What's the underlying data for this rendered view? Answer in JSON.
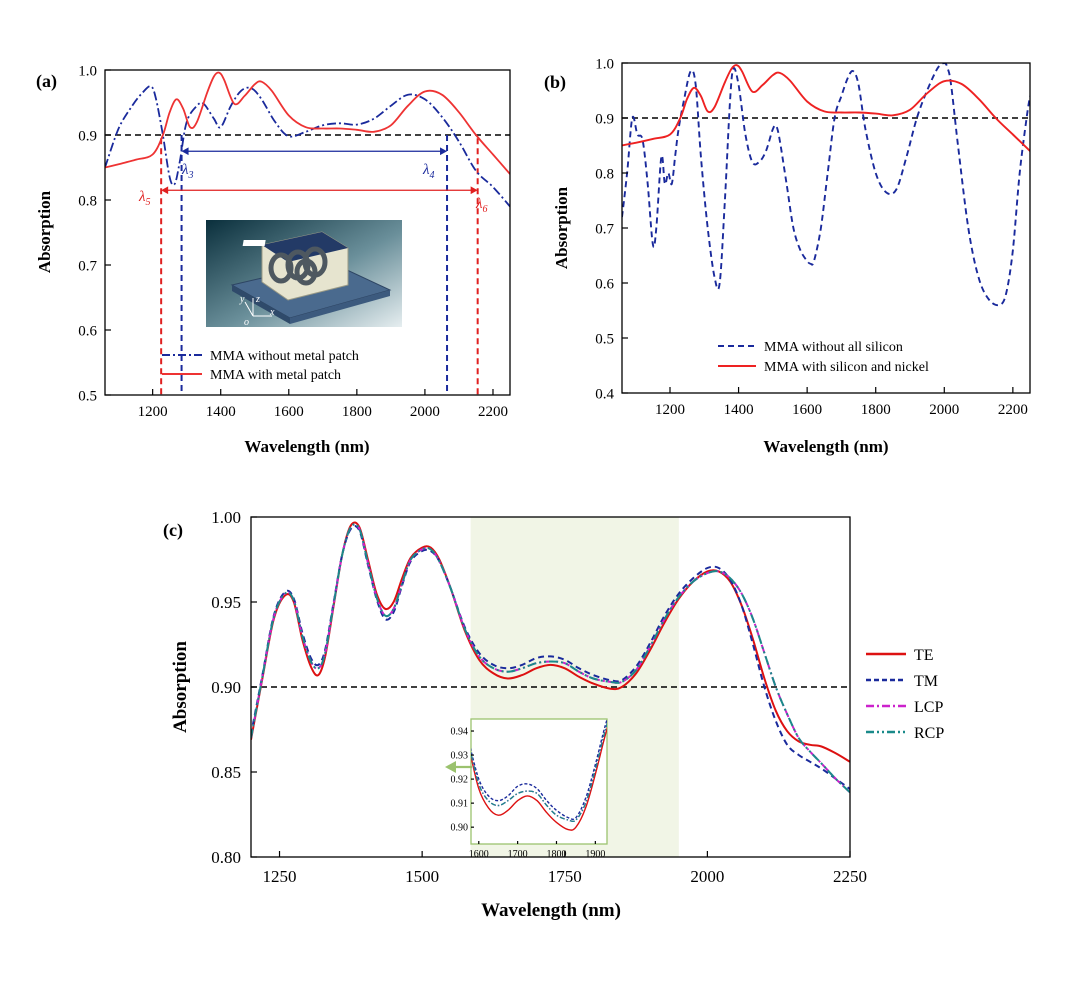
{
  "chart_data": [
    {
      "panel": "(a)",
      "type": "line",
      "xlabel": "Wavelength (nm)",
      "ylabel": "Absorption",
      "xlim": [
        1060,
        2250
      ],
      "ylim": [
        0.5,
        1.0
      ],
      "xticks": [
        1200,
        1400,
        1600,
        1800,
        2000,
        2200
      ],
      "yticks": [
        0.5,
        0.6,
        0.7,
        0.8,
        0.9,
        1.0
      ],
      "reference_line": 0.9,
      "series": [
        {
          "name": "MMA without metal patch",
          "style": "dash-dot",
          "color": "#1a2a9c",
          "x": [
            1060,
            1100,
            1140,
            1170,
            1195,
            1210,
            1230,
            1250,
            1265,
            1280,
            1300,
            1330,
            1350,
            1380,
            1400,
            1430,
            1460,
            1490,
            1520,
            1560,
            1600,
            1650,
            1700,
            1750,
            1800,
            1850,
            1900,
            1950,
            2000,
            2050,
            2100,
            2150,
            2200,
            2250
          ],
          "y": [
            0.85,
            0.91,
            0.945,
            0.965,
            0.975,
            0.955,
            0.9,
            0.835,
            0.825,
            0.86,
            0.92,
            0.945,
            0.948,
            0.925,
            0.912,
            0.945,
            0.968,
            0.972,
            0.955,
            0.92,
            0.898,
            0.905,
            0.915,
            0.918,
            0.916,
            0.925,
            0.945,
            0.962,
            0.955,
            0.928,
            0.89,
            0.845,
            0.82,
            0.79
          ]
        },
        {
          "name": "MMA with metal patch",
          "style": "solid",
          "color": "#ee3333",
          "x": [
            1060,
            1100,
            1150,
            1200,
            1230,
            1250,
            1270,
            1290,
            1310,
            1330,
            1360,
            1380,
            1395,
            1410,
            1440,
            1470,
            1500,
            1520,
            1550,
            1600,
            1650,
            1700,
            1750,
            1800,
            1850,
            1900,
            1950,
            2000,
            2050,
            2100,
            2150,
            2200,
            2250
          ],
          "y": [
            0.85,
            0.855,
            0.862,
            0.87,
            0.9,
            0.935,
            0.955,
            0.94,
            0.912,
            0.92,
            0.965,
            0.99,
            0.996,
            0.985,
            0.948,
            0.96,
            0.978,
            0.982,
            0.968,
            0.93,
            0.912,
            0.91,
            0.91,
            0.908,
            0.905,
            0.915,
            0.945,
            0.967,
            0.962,
            0.935,
            0.9,
            0.87,
            0.84
          ]
        }
      ],
      "annotations": {
        "lambda3": {
          "symbol": "λ",
          "sub": "3",
          "x": 1285
        },
        "lambda4": {
          "symbol": "λ",
          "sub": "4",
          "x": 2065
        },
        "lambda5": {
          "symbol": "λ",
          "sub": "5",
          "x": 1225
        },
        "lambda6": {
          "symbol": "λ",
          "sub": "6",
          "x": 2155
        },
        "axes_y": "y",
        "axes_z": "z",
        "axes_x": "x",
        "axes_o": "o"
      }
    },
    {
      "panel": "(b)",
      "type": "line",
      "xlabel": "Wavelength (nm)",
      "ylabel": "Absorption",
      "xlim": [
        1060,
        2250
      ],
      "ylim": [
        0.4,
        1.0
      ],
      "xticks": [
        1200,
        1400,
        1600,
        1800,
        2000,
        2200
      ],
      "yticks": [
        0.4,
        0.5,
        0.6,
        0.7,
        0.8,
        0.9,
        1.0
      ],
      "reference_line": 0.9,
      "series": [
        {
          "name": "MMA without all silicon",
          "style": "dash",
          "color": "#1a2a9c",
          "x": [
            1060,
            1075,
            1090,
            1105,
            1120,
            1135,
            1150,
            1160,
            1175,
            1185,
            1195,
            1205,
            1215,
            1225,
            1240,
            1260,
            1275,
            1290,
            1310,
            1330,
            1345,
            1360,
            1375,
            1385,
            1400,
            1420,
            1440,
            1460,
            1480,
            1500,
            1510,
            1520,
            1540,
            1560,
            1580,
            1600,
            1610,
            1620,
            1640,
            1660,
            1680,
            1700,
            1720,
            1735,
            1750,
            1770,
            1800,
            1830,
            1860,
            1890,
            1920,
            1950,
            1980,
            2000,
            2010,
            2020,
            2040,
            2070,
            2100,
            2130,
            2160,
            2180,
            2200,
            2220,
            2240,
            2250
          ],
          "y": [
            0.72,
            0.8,
            0.9,
            0.87,
            0.86,
            0.78,
            0.67,
            0.7,
            0.83,
            0.78,
            0.8,
            0.78,
            0.83,
            0.88,
            0.93,
            0.985,
            0.96,
            0.83,
            0.7,
            0.61,
            0.6,
            0.75,
            0.93,
            0.99,
            0.96,
            0.87,
            0.82,
            0.82,
            0.84,
            0.88,
            0.885,
            0.86,
            0.78,
            0.7,
            0.66,
            0.64,
            0.635,
            0.64,
            0.7,
            0.8,
            0.9,
            0.94,
            0.975,
            0.985,
            0.96,
            0.88,
            0.8,
            0.765,
            0.77,
            0.83,
            0.9,
            0.95,
            0.99,
            1.0,
            0.99,
            0.96,
            0.85,
            0.7,
            0.61,
            0.57,
            0.56,
            0.58,
            0.66,
            0.8,
            0.9,
            0.94
          ]
        },
        {
          "name": "MMA with silicon and nickel",
          "style": "solid",
          "color": "#ee2222",
          "x": [
            1060,
            1100,
            1150,
            1200,
            1230,
            1250,
            1270,
            1290,
            1310,
            1330,
            1360,
            1380,
            1395,
            1410,
            1440,
            1470,
            1500,
            1520,
            1550,
            1600,
            1650,
            1700,
            1750,
            1800,
            1850,
            1900,
            1950,
            2000,
            2050,
            2100,
            2150,
            2200,
            2250
          ],
          "y": [
            0.85,
            0.855,
            0.862,
            0.87,
            0.9,
            0.935,
            0.955,
            0.94,
            0.912,
            0.92,
            0.965,
            0.99,
            0.996,
            0.985,
            0.948,
            0.96,
            0.978,
            0.982,
            0.968,
            0.93,
            0.912,
            0.91,
            0.91,
            0.908,
            0.905,
            0.915,
            0.945,
            0.967,
            0.962,
            0.935,
            0.9,
            0.87,
            0.84
          ]
        }
      ]
    },
    {
      "panel": "(c)",
      "type": "line",
      "xlabel": "Wavelength (nm)",
      "ylabel": "Absorption",
      "xlim": [
        1200,
        2250
      ],
      "ylim": [
        0.8,
        1.0
      ],
      "xticks": [
        1250,
        1500,
        1750,
        2000,
        2250
      ],
      "yticks": [
        0.8,
        0.85,
        0.9,
        0.95,
        1.0
      ],
      "ytick_labels": [
        "0.80",
        "0.85",
        "0.90",
        "0.95",
        "1.00"
      ],
      "reference_line": 0.9,
      "highlight_band": [
        1585,
        1950
      ],
      "series": [
        {
          "name": "TE",
          "style": "solid",
          "color": "#dd1111",
          "x": [
            1200,
            1220,
            1240,
            1260,
            1275,
            1290,
            1305,
            1318,
            1330,
            1345,
            1360,
            1375,
            1390,
            1405,
            1420,
            1435,
            1450,
            1465,
            1480,
            1500,
            1515,
            1530,
            1550,
            1575,
            1600,
            1625,
            1650,
            1675,
            1700,
            1725,
            1750,
            1775,
            1800,
            1830,
            1850,
            1875,
            1900,
            1925,
            1950,
            1975,
            2000,
            2020,
            2040,
            2060,
            2080,
            2100,
            2120,
            2140,
            2160,
            2180,
            2200,
            2225,
            2250
          ],
          "y": [
            0.869,
            0.905,
            0.94,
            0.954,
            0.95,
            0.928,
            0.912,
            0.907,
            0.918,
            0.948,
            0.978,
            0.995,
            0.994,
            0.975,
            0.955,
            0.946,
            0.95,
            0.964,
            0.976,
            0.982,
            0.982,
            0.975,
            0.958,
            0.933,
            0.916,
            0.908,
            0.905,
            0.907,
            0.911,
            0.913,
            0.911,
            0.906,
            0.902,
            0.899,
            0.9,
            0.908,
            0.922,
            0.938,
            0.952,
            0.962,
            0.968,
            0.968,
            0.962,
            0.948,
            0.928,
            0.905,
            0.886,
            0.874,
            0.868,
            0.866,
            0.865,
            0.861,
            0.856
          ]
        },
        {
          "name": "TM",
          "style": "dash",
          "color": "#1a2a9c",
          "x": [
            1200,
            1220,
            1240,
            1260,
            1275,
            1290,
            1305,
            1318,
            1330,
            1345,
            1360,
            1375,
            1390,
            1405,
            1420,
            1435,
            1450,
            1465,
            1480,
            1500,
            1515,
            1530,
            1550,
            1575,
            1600,
            1625,
            1650,
            1675,
            1700,
            1725,
            1750,
            1775,
            1800,
            1830,
            1850,
            1875,
            1900,
            1925,
            1950,
            1975,
            2000,
            2020,
            2040,
            2060,
            2080,
            2100,
            2120,
            2140,
            2160,
            2180,
            2200,
            2225,
            2250
          ],
          "y": [
            0.872,
            0.907,
            0.942,
            0.956,
            0.952,
            0.932,
            0.917,
            0.913,
            0.922,
            0.95,
            0.978,
            0.993,
            0.992,
            0.972,
            0.952,
            0.94,
            0.944,
            0.96,
            0.974,
            0.98,
            0.98,
            0.974,
            0.958,
            0.935,
            0.92,
            0.913,
            0.911,
            0.913,
            0.917,
            0.918,
            0.916,
            0.911,
            0.907,
            0.904,
            0.904,
            0.912,
            0.926,
            0.942,
            0.955,
            0.964,
            0.97,
            0.97,
            0.963,
            0.948,
            0.925,
            0.9,
            0.88,
            0.866,
            0.86,
            0.856,
            0.852,
            0.846,
            0.84
          ]
        },
        {
          "name": "LCP",
          "style": "dash-dot",
          "color": "#cc22cc",
          "x": [
            1200,
            1220,
            1240,
            1260,
            1275,
            1290,
            1305,
            1318,
            1330,
            1345,
            1360,
            1375,
            1390,
            1405,
            1420,
            1435,
            1450,
            1465,
            1480,
            1500,
            1515,
            1530,
            1550,
            1575,
            1600,
            1625,
            1650,
            1675,
            1700,
            1725,
            1750,
            1775,
            1800,
            1830,
            1850,
            1875,
            1900,
            1925,
            1950,
            1975,
            2000,
            2020,
            2040,
            2060,
            2080,
            2100,
            2120,
            2140,
            2160,
            2180,
            2200,
            2225,
            2250
          ],
          "y": [
            0.87,
            0.906,
            0.941,
            0.955,
            0.951,
            0.93,
            0.915,
            0.911,
            0.92,
            0.949,
            0.978,
            0.994,
            0.993,
            0.973,
            0.953,
            0.942,
            0.946,
            0.961,
            0.975,
            0.981,
            0.981,
            0.974,
            0.958,
            0.934,
            0.918,
            0.911,
            0.909,
            0.911,
            0.914,
            0.915,
            0.914,
            0.909,
            0.905,
            0.903,
            0.903,
            0.91,
            0.924,
            0.94,
            0.953,
            0.962,
            0.967,
            0.968,
            0.964,
            0.955,
            0.94,
            0.92,
            0.9,
            0.884,
            0.87,
            0.862,
            0.855,
            0.846,
            0.838
          ]
        },
        {
          "name": "RCP",
          "style": "dash-dot-dot",
          "color": "#1a8a8a",
          "x": [
            1200,
            1220,
            1240,
            1260,
            1275,
            1290,
            1305,
            1318,
            1330,
            1345,
            1360,
            1375,
            1390,
            1405,
            1420,
            1435,
            1450,
            1465,
            1480,
            1500,
            1515,
            1530,
            1550,
            1575,
            1600,
            1625,
            1650,
            1675,
            1700,
            1725,
            1750,
            1775,
            1800,
            1830,
            1850,
            1875,
            1900,
            1925,
            1950,
            1975,
            2000,
            2020,
            2040,
            2060,
            2080,
            2100,
            2120,
            2140,
            2160,
            2180,
            2200,
            2225,
            2250
          ],
          "y": [
            0.87,
            0.906,
            0.941,
            0.955,
            0.951,
            0.93,
            0.915,
            0.911,
            0.92,
            0.949,
            0.978,
            0.994,
            0.993,
            0.973,
            0.953,
            0.942,
            0.946,
            0.961,
            0.975,
            0.981,
            0.981,
            0.974,
            0.958,
            0.934,
            0.918,
            0.911,
            0.909,
            0.911,
            0.914,
            0.915,
            0.914,
            0.909,
            0.905,
            0.903,
            0.903,
            0.91,
            0.924,
            0.94,
            0.953,
            0.962,
            0.967,
            0.968,
            0.964,
            0.955,
            0.94,
            0.92,
            0.9,
            0.884,
            0.87,
            0.862,
            0.855,
            0.846,
            0.838
          ]
        }
      ],
      "inset": {
        "xlim": [
          1580,
          1930
        ],
        "ylim": [
          0.893,
          0.945
        ],
        "xticks": [
          1600,
          1700,
          1800,
          1900
        ],
        "yticks": [
          0.9,
          0.91,
          0.92,
          0.93,
          0.94
        ],
        "ytick_labels": [
          "0.90",
          "0.91",
          "0.92",
          "0.93",
          "0.94"
        ]
      }
    }
  ],
  "colors": {
    "accent_red": "#e02020",
    "accent_blue": "#1a2a9c",
    "band_fill": "#f1f5e6",
    "inset_frame": "#9bc26e"
  }
}
